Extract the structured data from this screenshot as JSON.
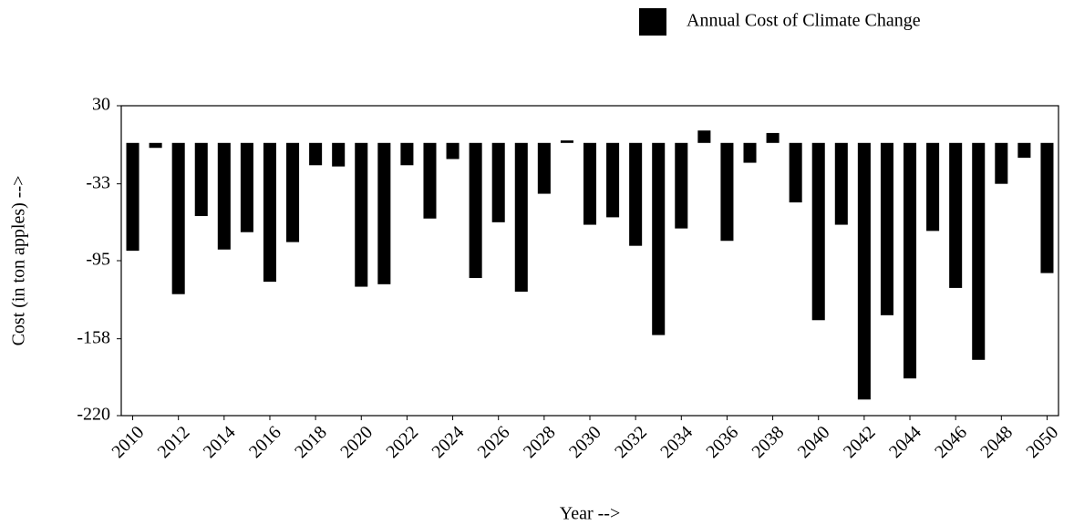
{
  "chart_data": {
    "type": "bar",
    "x_label": "Year -->",
    "y_label": "Cost (in ton apples) -->",
    "x": [
      2010,
      2011,
      2012,
      2013,
      2014,
      2015,
      2016,
      2017,
      2018,
      2019,
      2020,
      2021,
      2022,
      2023,
      2024,
      2025,
      2026,
      2027,
      2028,
      2029,
      2030,
      2031,
      2032,
      2033,
      2034,
      2035,
      2036,
      2037,
      2038,
      2039,
      2040,
      2041,
      2042,
      2043,
      2044,
      2045,
      2046,
      2047,
      2048,
      2049,
      2050
    ],
    "series": [
      {
        "name": "Annual Cost of Climate Change",
        "color": "#000000",
        "values": [
          -87,
          -4,
          -122,
          -59,
          -86,
          -72,
          -112,
          -80,
          -18,
          -19,
          -116,
          -114,
          -18,
          -61,
          -13,
          -109,
          -64,
          -120,
          -41,
          2,
          -66,
          -60,
          -83,
          -155,
          -69,
          10,
          -79,
          -16,
          8,
          -48,
          -143,
          -66,
          -207,
          -139,
          -190,
          -71,
          -117,
          -175,
          -33,
          -12,
          -105
        ]
      }
    ],
    "xlim": [
      2009.5,
      2050.5
    ],
    "xticks": [
      2010,
      2012,
      2014,
      2016,
      2018,
      2020,
      2022,
      2024,
      2026,
      2028,
      2030,
      2032,
      2034,
      2036,
      2038,
      2040,
      2042,
      2044,
      2046,
      2048,
      2050
    ],
    "ylim": [
      -220,
      30
    ],
    "yticks": [
      30,
      -33,
      -95,
      -158,
      -220
    ],
    "grid": false,
    "legend": "upper right"
  }
}
